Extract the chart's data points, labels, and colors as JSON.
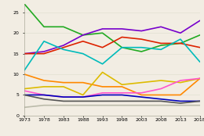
{
  "x": [
    1973,
    1978,
    1983,
    1988,
    1993,
    1998,
    2003,
    2008,
    2013,
    2018
  ],
  "series": [
    {
      "color": "#22aa22",
      "values": [
        27,
        21.5,
        21.5,
        19.5,
        20,
        16.5,
        15.5,
        17,
        17.5,
        19.5
      ]
    },
    {
      "color": "#7700cc",
      "values": [
        15,
        15.5,
        17,
        19.5,
        21,
        21,
        20.5,
        21.5,
        20,
        23
      ]
    },
    {
      "color": "#dd2200",
      "values": [
        15,
        15,
        16.5,
        18,
        16.5,
        19,
        18.5,
        17.5,
        17.5,
        16.5
      ]
    },
    {
      "color": "#00bbbb",
      "values": [
        11,
        18,
        16,
        15,
        12.5,
        16.5,
        16.5,
        16,
        18.5,
        13
      ]
    },
    {
      "color": "#ff8800",
      "values": [
        10,
        8.5,
        8,
        8,
        7,
        7,
        5,
        5,
        5,
        9
      ]
    },
    {
      "color": "#ddbb00",
      "values": [
        6.5,
        7,
        7,
        5,
        10.5,
        7.5,
        8,
        8.5,
        8,
        9
      ]
    },
    {
      "color": "#ff55cc",
      "values": [
        6,
        5,
        4.5,
        4.5,
        5.5,
        5.5,
        5.5,
        6.5,
        8.5,
        9
      ]
    },
    {
      "color": "#0000bb",
      "values": [
        5,
        5,
        4.5,
        4.5,
        5,
        5,
        4.5,
        4,
        3.5,
        3.5
      ]
    },
    {
      "color": "#555555",
      "values": [
        5,
        4,
        3.5,
        3.5,
        3.5,
        3.5,
        3.5,
        3.5,
        3,
        3.5
      ]
    },
    {
      "color": "#bbbbaa",
      "values": [
        2,
        2.5,
        2.5,
        2.5,
        2.5,
        2.5,
        2.5,
        2.5,
        2.5,
        2.5
      ]
    }
  ],
  "xlim": [
    1973,
    2018
  ],
  "ylim": [
    0,
    27
  ],
  "yticks": [
    0,
    5,
    10,
    15,
    20,
    25
  ],
  "xtick_labels": [
    "1973",
    "1978",
    "1983",
    "1988",
    "1993",
    "1998",
    "2003",
    "2008",
    "2013",
    "2018"
  ],
  "background_color": "#f2ede3",
  "linewidth": 1.2
}
